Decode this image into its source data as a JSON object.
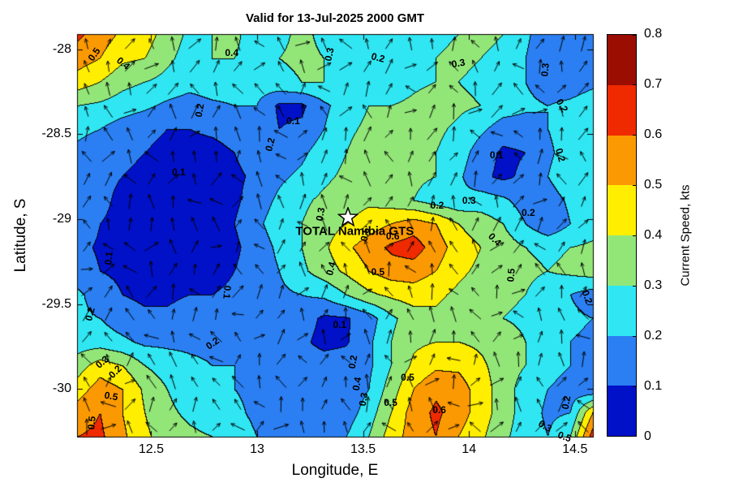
{
  "title": "Valid for 13-Jul-2025 2000 GMT",
  "axes": {
    "xlabel": "Longitude, E",
    "ylabel": "Latitude, S",
    "xticks": [
      {
        "value": 12.5,
        "label": "12.5"
      },
      {
        "value": 13.0,
        "label": "13"
      },
      {
        "value": 13.5,
        "label": "13.5"
      },
      {
        "value": 14.0,
        "label": "14"
      },
      {
        "value": 14.5,
        "label": "14.5"
      }
    ],
    "yticks": [
      {
        "value": -28.0,
        "label": "-28"
      },
      {
        "value": -28.5,
        "label": "-28.5"
      },
      {
        "value": -29.0,
        "label": "-29"
      },
      {
        "value": -29.5,
        "label": "-29.5"
      },
      {
        "value": -30.0,
        "label": "-30"
      }
    ]
  },
  "colorbar": {
    "label": "Current Speed, kts",
    "ticks": [
      "0",
      "0.1",
      "0.2",
      "0.3",
      "0.4",
      "0.5",
      "0.6",
      "0.7",
      "0.8"
    ],
    "range": [
      0,
      0.8
    ],
    "band_colors": [
      "#0011c8",
      "#2b7ff2",
      "#30e6f2",
      "#92e678",
      "#ffee00",
      "#fb9902",
      "#ef2a00",
      "#9b0d00"
    ]
  },
  "station": {
    "label": "TOTAL Namibia GTS",
    "lon": 13.43,
    "lat": -28.99,
    "marker": "star",
    "marker_fill": "#ffffff",
    "marker_edge": "#000000"
  },
  "chart_data": {
    "type": "heatmap",
    "subtype": "filled-contour-with-quiver",
    "title": "Valid for 13-Jul-2025 2000 GMT",
    "xlabel": "Longitude, E",
    "ylabel": "Latitude, S",
    "units": "kts",
    "lon_range": [
      12.15,
      14.585
    ],
    "lat_range": [
      -27.91,
      -30.28
    ],
    "levels": [
      0,
      0.1,
      0.2,
      0.3,
      0.4,
      0.5,
      0.6,
      0.7,
      0.8
    ],
    "contour_interval": 0.1,
    "contour_line_color": "#000000",
    "values": [
      [
        0.62,
        0.55,
        0.48,
        0.45,
        0.35,
        0.28,
        0.3,
        0.32,
        0.25,
        0.28,
        0.32,
        0.28,
        0.22,
        0.22,
        0.22,
        0.25,
        0.28,
        0.3,
        0.32,
        0.3,
        0.22,
        0.13,
        0.1,
        0.14
      ],
      [
        0.55,
        0.5,
        0.42,
        0.4,
        0.32,
        0.26,
        0.3,
        0.3,
        0.26,
        0.3,
        0.32,
        0.3,
        0.24,
        0.22,
        0.22,
        0.26,
        0.3,
        0.32,
        0.3,
        0.28,
        0.2,
        0.12,
        0.1,
        0.13
      ],
      [
        0.45,
        0.4,
        0.33,
        0.3,
        0.27,
        0.24,
        0.26,
        0.25,
        0.25,
        0.27,
        0.3,
        0.3,
        0.26,
        0.24,
        0.24,
        0.28,
        0.3,
        0.3,
        0.28,
        0.25,
        0.2,
        0.15,
        0.15,
        0.18
      ],
      [
        0.3,
        0.28,
        0.25,
        0.22,
        0.18,
        0.15,
        0.18,
        0.2,
        0.2,
        0.08,
        0.08,
        0.18,
        0.25,
        0.3,
        0.3,
        0.32,
        0.35,
        0.32,
        0.3,
        0.25,
        0.22,
        0.2,
        0.22,
        0.25
      ],
      [
        0.22,
        0.2,
        0.15,
        0.12,
        0.1,
        0.1,
        0.12,
        0.15,
        0.18,
        0.1,
        0.12,
        0.2,
        0.28,
        0.32,
        0.35,
        0.35,
        0.32,
        0.28,
        0.22,
        0.15,
        0.15,
        0.2,
        0.25,
        0.28
      ],
      [
        0.18,
        0.15,
        0.12,
        0.1,
        0.08,
        0.06,
        0.06,
        0.1,
        0.15,
        0.15,
        0.18,
        0.25,
        0.3,
        0.35,
        0.35,
        0.35,
        0.3,
        0.25,
        0.15,
        0.08,
        0.1,
        0.18,
        0.25,
        0.3
      ],
      [
        0.15,
        0.12,
        0.1,
        0.08,
        0.05,
        0.04,
        0.05,
        0.08,
        0.12,
        0.18,
        0.22,
        0.28,
        0.32,
        0.35,
        0.35,
        0.32,
        0.3,
        0.22,
        0.12,
        0.08,
        0.12,
        0.2,
        0.28,
        0.3
      ],
      [
        0.15,
        0.12,
        0.08,
        0.06,
        0.04,
        0.03,
        0.05,
        0.08,
        0.15,
        0.22,
        0.28,
        0.32,
        0.35,
        0.38,
        0.35,
        0.3,
        0.25,
        0.22,
        0.25,
        0.22,
        0.15,
        0.15,
        0.22,
        0.28
      ],
      [
        0.15,
        0.1,
        0.08,
        0.05,
        0.04,
        0.04,
        0.06,
        0.1,
        0.18,
        0.25,
        0.3,
        0.35,
        0.4,
        0.45,
        0.5,
        0.55,
        0.5,
        0.4,
        0.35,
        0.3,
        0.2,
        0.12,
        0.2,
        0.25
      ],
      [
        0.12,
        0.09,
        0.06,
        0.05,
        0.04,
        0.05,
        0.05,
        0.08,
        0.15,
        0.22,
        0.3,
        0.38,
        0.48,
        0.55,
        0.62,
        0.65,
        0.55,
        0.45,
        0.4,
        0.35,
        0.3,
        0.28,
        0.3,
        0.32
      ],
      [
        0.14,
        0.1,
        0.08,
        0.06,
        0.05,
        0.06,
        0.06,
        0.1,
        0.15,
        0.2,
        0.28,
        0.35,
        0.42,
        0.5,
        0.55,
        0.55,
        0.5,
        0.42,
        0.38,
        0.35,
        0.32,
        0.3,
        0.32,
        0.35
      ],
      [
        0.22,
        0.15,
        0.1,
        0.08,
        0.08,
        0.1,
        0.1,
        0.12,
        0.15,
        0.18,
        0.2,
        0.22,
        0.3,
        0.38,
        0.42,
        0.45,
        0.42,
        0.38,
        0.35,
        0.32,
        0.3,
        0.25,
        0.2,
        0.15
      ],
      [
        0.22,
        0.2,
        0.15,
        0.12,
        0.12,
        0.15,
        0.15,
        0.18,
        0.18,
        0.15,
        0.15,
        0.08,
        0.09,
        0.15,
        0.28,
        0.35,
        0.38,
        0.35,
        0.32,
        0.3,
        0.28,
        0.25,
        0.22,
        0.2
      ],
      [
        0.25,
        0.25,
        0.22,
        0.18,
        0.18,
        0.18,
        0.18,
        0.2,
        0.18,
        0.15,
        0.12,
        0.07,
        0.09,
        0.18,
        0.3,
        0.38,
        0.4,
        0.4,
        0.38,
        0.35,
        0.3,
        0.25,
        0.2,
        0.18
      ],
      [
        0.35,
        0.45,
        0.4,
        0.3,
        0.25,
        0.22,
        0.2,
        0.2,
        0.2,
        0.18,
        0.15,
        0.15,
        0.15,
        0.18,
        0.3,
        0.42,
        0.48,
        0.48,
        0.42,
        0.35,
        0.3,
        0.25,
        0.2,
        0.15
      ],
      [
        0.45,
        0.55,
        0.5,
        0.38,
        0.3,
        0.25,
        0.22,
        0.2,
        0.18,
        0.15,
        0.15,
        0.12,
        0.12,
        0.2,
        0.35,
        0.5,
        0.58,
        0.55,
        0.45,
        0.35,
        0.25,
        0.2,
        0.15,
        0.12
      ],
      [
        0.55,
        0.6,
        0.5,
        0.4,
        0.32,
        0.28,
        0.25,
        0.22,
        0.18,
        0.15,
        0.12,
        0.12,
        0.15,
        0.25,
        0.4,
        0.55,
        0.62,
        0.55,
        0.45,
        0.35,
        0.25,
        0.18,
        0.2,
        0.5
      ],
      [
        0.6,
        0.62,
        0.52,
        0.42,
        0.35,
        0.32,
        0.3,
        0.25,
        0.2,
        0.18,
        0.15,
        0.15,
        0.2,
        0.3,
        0.45,
        0.55,
        0.6,
        0.5,
        0.42,
        0.32,
        0.25,
        0.2,
        0.3,
        0.65
      ]
    ],
    "contour_labels": [
      {
        "t": "0.5",
        "lon": 12.23,
        "lat": -28.03,
        "rot": -55
      },
      {
        "t": "0.4",
        "lon": 12.37,
        "lat": -28.08,
        "rot": 40
      },
      {
        "t": "0.4",
        "lon": 12.88,
        "lat": -28.02,
        "rot": 0
      },
      {
        "t": "0.3",
        "lon": 13.34,
        "lat": -28.03,
        "rot": -78
      },
      {
        "t": "0.2",
        "lon": 13.57,
        "lat": -28.05,
        "rot": 15
      },
      {
        "t": "0.3",
        "lon": 13.95,
        "lat": -28.08,
        "rot": -10
      },
      {
        "t": "0.3",
        "lon": 14.36,
        "lat": -28.12,
        "rot": -85
      },
      {
        "t": "0.2",
        "lon": 12.73,
        "lat": -28.36,
        "rot": -80
      },
      {
        "t": "0.1",
        "lon": 13.17,
        "lat": -28.42,
        "rot": 0
      },
      {
        "t": "0.2",
        "lon": 13.06,
        "lat": -28.56,
        "rot": -75
      },
      {
        "t": "0.1",
        "lon": 12.63,
        "lat": -28.72,
        "rot": 0
      },
      {
        "t": "0.2",
        "lon": 14.44,
        "lat": -28.33,
        "rot": 60
      },
      {
        "t": "0.1",
        "lon": 14.13,
        "lat": -28.62,
        "rot": 0
      },
      {
        "t": "0.2",
        "lon": 14.43,
        "lat": -28.62,
        "rot": 75
      },
      {
        "t": "0.2",
        "lon": 13.85,
        "lat": -28.92,
        "rot": 0
      },
      {
        "t": "0.3",
        "lon": 14.0,
        "lat": -28.89,
        "rot": 0
      },
      {
        "t": "0.2",
        "lon": 14.28,
        "lat": -28.96,
        "rot": 0
      },
      {
        "t": "0.3",
        "lon": 13.3,
        "lat": -28.97,
        "rot": -80
      },
      {
        "t": "0.5",
        "lon": 13.51,
        "lat": -29.09,
        "rot": -80
      },
      {
        "t": "0.6",
        "lon": 13.64,
        "lat": -29.1,
        "rot": 0
      },
      {
        "t": "0.4",
        "lon": 14.12,
        "lat": -29.12,
        "rot": 45
      },
      {
        "t": "0.5",
        "lon": 13.57,
        "lat": -29.31,
        "rot": 0
      },
      {
        "t": "0.4",
        "lon": 13.35,
        "lat": -29.29,
        "rot": -75
      },
      {
        "t": "0.5",
        "lon": 14.2,
        "lat": -29.33,
        "rot": -85
      },
      {
        "t": "0.1",
        "lon": 12.3,
        "lat": -29.23,
        "rot": -85
      },
      {
        "t": "0.1",
        "lon": 12.86,
        "lat": -29.43,
        "rot": 95
      },
      {
        "t": "0.2",
        "lon": 12.21,
        "lat": -29.56,
        "rot": -75
      },
      {
        "t": "0.2",
        "lon": 12.79,
        "lat": -29.73,
        "rot": -35
      },
      {
        "t": "0.1",
        "lon": 13.39,
        "lat": -29.62,
        "rot": 0
      },
      {
        "t": "0.3",
        "lon": 12.27,
        "lat": -29.84,
        "rot": -40
      },
      {
        "t": "0.2",
        "lon": 12.33,
        "lat": -29.9,
        "rot": -45
      },
      {
        "t": "0.5",
        "lon": 12.31,
        "lat": -30.04,
        "rot": 10
      },
      {
        "t": "0.5",
        "lon": 12.22,
        "lat": -30.2,
        "rot": -85
      },
      {
        "t": "0.2",
        "lon": 13.45,
        "lat": -29.84,
        "rot": -80
      },
      {
        "t": "0.4",
        "lon": 13.47,
        "lat": -29.97,
        "rot": -80
      },
      {
        "t": "0.3",
        "lon": 13.5,
        "lat": -30.06,
        "rot": -80
      },
      {
        "t": "0.5",
        "lon": 13.71,
        "lat": -29.93,
        "rot": 0
      },
      {
        "t": "0.5",
        "lon": 13.63,
        "lat": -30.08,
        "rot": 0
      },
      {
        "t": "0.6",
        "lon": 13.86,
        "lat": -30.12,
        "rot": 0
      },
      {
        "t": "0.2",
        "lon": 14.46,
        "lat": -30.08,
        "rot": -80
      },
      {
        "t": "0.3",
        "lon": 14.36,
        "lat": -30.22,
        "rot": 30
      },
      {
        "t": "0.5",
        "lon": 14.45,
        "lat": -30.28,
        "rot": 20
      },
      {
        "t": "0.2",
        "lon": 14.56,
        "lat": -29.46,
        "rot": 70
      }
    ],
    "vectors": {
      "cols": 24,
      "rows": 18,
      "color": "#000000",
      "note": "quiver arrows of current direction, predominantly northward"
    }
  }
}
